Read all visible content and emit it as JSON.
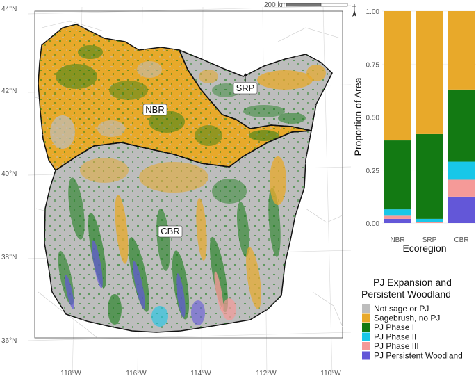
{
  "map": {
    "lat_labels": [
      "44°N",
      "42°N",
      "40°N",
      "38°N",
      "36°N"
    ],
    "lon_labels": [
      "118°W",
      "116°W",
      "114°W",
      "112°W",
      "110°W"
    ],
    "scale_label": "200 km",
    "regions": [
      {
        "label": "NBR"
      },
      {
        "label": "SRP"
      },
      {
        "label": "CBR"
      }
    ]
  },
  "colors": {
    "not_sage": "#bdbdbd",
    "sagebrush": "#e8a92a",
    "phase1": "#137a13",
    "phase2": "#18c7e8",
    "phase3": "#f59a98",
    "persistent": "#6357d8"
  },
  "chart_data": {
    "type": "bar",
    "stacked": true,
    "xlabel": "Ecoregion",
    "ylabel": "Proportion of Area",
    "ylim": [
      0,
      1
    ],
    "y_ticks": [
      "0.00",
      "0.25",
      "0.50",
      "0.75",
      "1.00"
    ],
    "categories": [
      "NBR",
      "SRP",
      "CBR"
    ],
    "series": [
      {
        "name": "PJ Persistent Woodland",
        "color": "#6357d8",
        "values": [
          0.02,
          0.0,
          0.125
        ]
      },
      {
        "name": "PJ Phase III",
        "color": "#f59a98",
        "values": [
          0.015,
          0.005,
          0.08
        ]
      },
      {
        "name": "PJ Phase II",
        "color": "#18c7e8",
        "values": [
          0.03,
          0.015,
          0.085
        ]
      },
      {
        "name": "PJ Phase I",
        "color": "#137a13",
        "values": [
          0.325,
          0.4,
          0.34
        ]
      },
      {
        "name": "Sagebrush, no PJ",
        "color": "#e8a92a",
        "values": [
          0.61,
          0.58,
          0.37
        ]
      }
    ]
  },
  "legend": {
    "title_line1": "PJ Expansion and",
    "title_line2": "Persistent Woodland",
    "items": [
      {
        "label": "Not sage or PJ",
        "color": "#bdbdbd"
      },
      {
        "label": "Sagebrush, no PJ",
        "color": "#e8a92a"
      },
      {
        "label": "PJ Phase I",
        "color": "#137a13"
      },
      {
        "label": "PJ Phase II",
        "color": "#18c7e8"
      },
      {
        "label": "PJ Phase III",
        "color": "#f59a98"
      },
      {
        "label": "PJ Persistent Woodland",
        "color": "#6357d8"
      }
    ]
  }
}
